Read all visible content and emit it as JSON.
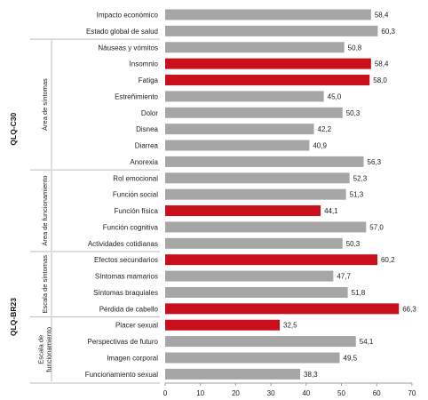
{
  "chart_data": {
    "type": "bar",
    "orientation": "horizontal",
    "categories": [
      "Impacto económico",
      "Estado global de salud",
      "Náuseas y vómitos",
      "Insomnio",
      "Fatiga",
      "Estreñimiento",
      "Dolor",
      "Disnea",
      "Diarrea",
      "Anorexia",
      "Rol emocional",
      "Función social",
      "Función física",
      "Función cognitiva",
      "Actividades cotidianas",
      "Efectos secundarios",
      "Síntomas mamarios",
      "Síntomas braquiales",
      "Pérdida de cabello",
      "Placer sexual",
      "Perspectivas de futuro",
      "Imagen corporal",
      "Funcionamiento sexual"
    ],
    "values": [
      58.4,
      60.3,
      50.8,
      58.4,
      58.0,
      45.0,
      50.3,
      42.2,
      40.9,
      56.3,
      52.3,
      51.3,
      44.1,
      57.0,
      50.3,
      60.2,
      47.7,
      51.8,
      66.3,
      32.5,
      54.1,
      49.5,
      38.3
    ],
    "value_labels": [
      "58,4",
      "60,3",
      "50,8",
      "58,4",
      "58,0",
      "45,0",
      "50,3",
      "42,2",
      "40,9",
      "56,3",
      "52,3",
      "51,3",
      "44,1",
      "57,0",
      "50,3",
      "60,2",
      "47,7",
      "51,8",
      "66,3",
      "32,5",
      "54,1",
      "49,5",
      "38,3"
    ],
    "highlighted": [
      false,
      false,
      false,
      true,
      true,
      false,
      false,
      false,
      false,
      false,
      false,
      false,
      true,
      false,
      false,
      true,
      false,
      false,
      true,
      true,
      false,
      false,
      false
    ],
    "colors": {
      "normal": "#a6a6a6",
      "highlight": "#c8101c",
      "separator": "#bdbdbd",
      "axis": "#9a9a9a"
    },
    "xlim": [
      0,
      70
    ],
    "xticks": [
      "0",
      "10",
      "20",
      "30",
      "40",
      "50",
      "60",
      "70"
    ],
    "xtick_values": [
      0,
      10,
      20,
      30,
      40,
      50,
      60,
      70
    ],
    "grid": false,
    "groups": [
      {
        "label": "QLQ-C30",
        "start": 0,
        "end": 14
      },
      {
        "label": "QLQ-BR23",
        "start": 15,
        "end": 22
      }
    ],
    "subgroups": [
      {
        "lines": [
          "Área de síntomas"
        ],
        "start": 2,
        "end": 9
      },
      {
        "lines": [
          "Área de funcionamiento"
        ],
        "start": 10,
        "end": 14
      },
      {
        "lines": [
          "Escala de síntomas"
        ],
        "start": 15,
        "end": 18
      },
      {
        "lines": [
          "Escala de",
          "funcionamiento"
        ],
        "start": 19,
        "end": 22
      }
    ],
    "separator_after": [
      1,
      9,
      14,
      18
    ]
  }
}
